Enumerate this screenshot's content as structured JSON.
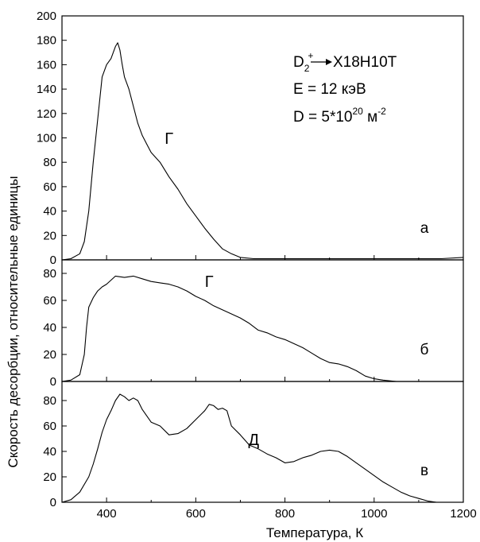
{
  "figure": {
    "ylabel": "Скорость десорбции, относительные единицы",
    "xlabel": "Температура, К"
  },
  "annotation": {
    "line1_main": "D",
    "line1_sub": "2",
    "line1_sup": "+",
    "line1_target": "X18H10T",
    "line2": "E = 12 кэВ",
    "line3_pre": "D = 5*10",
    "line3_exp": "20",
    "line3_post": " м",
    "line3_post_exp": "-2"
  },
  "chart_data": [
    {
      "type": "line",
      "panel_label": "а",
      "peak_labels": [
        {
          "text": "Г",
          "x": 540,
          "y": 95
        }
      ],
      "xlim": [
        300,
        1200
      ],
      "ylim": [
        0,
        200
      ],
      "xticks": [
        400,
        600,
        800,
        1000,
        1200
      ],
      "yticks": [
        0,
        20,
        40,
        60,
        80,
        100,
        120,
        140,
        160,
        180,
        200
      ],
      "x": [
        300,
        320,
        340,
        350,
        360,
        370,
        380,
        390,
        400,
        410,
        420,
        425,
        430,
        435,
        440,
        450,
        460,
        470,
        480,
        490,
        500,
        520,
        540,
        560,
        580,
        600,
        620,
        640,
        660,
        680,
        700,
        730,
        760,
        800,
        850,
        900,
        950,
        1000,
        1050,
        1100,
        1150,
        1200
      ],
      "series": [
        {
          "values": [
            0,
            1,
            5,
            15,
            40,
            80,
            115,
            150,
            160,
            165,
            175,
            178,
            172,
            160,
            150,
            140,
            126,
            112,
            102,
            95,
            88,
            80,
            68,
            58,
            46,
            36,
            26,
            17,
            9,
            5,
            2,
            1,
            1,
            1,
            1,
            1,
            1,
            1,
            1,
            1,
            1,
            2
          ]
        }
      ]
    },
    {
      "type": "line",
      "panel_label": "б",
      "peak_labels": [
        {
          "text": "Г",
          "x": 630,
          "y": 70
        }
      ],
      "xlim": [
        300,
        1200
      ],
      "ylim": [
        0,
        90
      ],
      "xticks": [
        400,
        600,
        800,
        1000,
        1200
      ],
      "yticks": [
        0,
        20,
        40,
        60,
        80
      ],
      "x": [
        300,
        320,
        340,
        350,
        355,
        360,
        370,
        380,
        390,
        400,
        420,
        440,
        460,
        480,
        500,
        520,
        540,
        560,
        580,
        600,
        620,
        640,
        660,
        680,
        700,
        720,
        740,
        760,
        780,
        800,
        820,
        840,
        860,
        880,
        900,
        920,
        940,
        960,
        980,
        1000,
        1020,
        1050,
        1100,
        1200
      ],
      "series": [
        {
          "values": [
            0,
            1,
            5,
            20,
            40,
            55,
            62,
            67,
            70,
            72,
            78,
            77,
            78,
            76,
            74,
            73,
            72,
            70,
            67,
            63,
            60,
            56,
            53,
            50,
            47,
            43,
            38,
            36,
            33,
            31,
            28,
            25,
            21,
            17,
            14,
            13,
            11,
            8,
            4,
            2,
            1,
            0,
            0,
            0
          ]
        }
      ]
    },
    {
      "type": "line",
      "panel_label": "в",
      "peak_labels": [
        {
          "text": "Д",
          "x": 730,
          "y": 45
        }
      ],
      "xlim": [
        300,
        1200
      ],
      "ylim": [
        0,
        95
      ],
      "xticks": [
        400,
        600,
        800,
        1000,
        1200
      ],
      "yticks": [
        0,
        20,
        40,
        60,
        80
      ],
      "x": [
        300,
        320,
        340,
        360,
        370,
        380,
        390,
        400,
        410,
        420,
        430,
        440,
        450,
        460,
        470,
        480,
        500,
        520,
        540,
        560,
        580,
        600,
        620,
        630,
        640,
        650,
        660,
        670,
        680,
        700,
        720,
        740,
        760,
        780,
        800,
        820,
        840,
        860,
        880,
        900,
        920,
        940,
        960,
        980,
        1000,
        1020,
        1040,
        1060,
        1080,
        1100,
        1120,
        1140,
        1150
      ],
      "series": [
        {
          "values": [
            0,
            2,
            8,
            20,
            30,
            42,
            55,
            65,
            72,
            80,
            85,
            83,
            80,
            82,
            80,
            73,
            63,
            60,
            53,
            54,
            58,
            65,
            72,
            77,
            76,
            73,
            74,
            72,
            60,
            53,
            45,
            42,
            38,
            35,
            31,
            32,
            35,
            37,
            40,
            41,
            40,
            36,
            31,
            26,
            21,
            16,
            12,
            8,
            5,
            3,
            1,
            0,
            0
          ]
        }
      ]
    }
  ]
}
